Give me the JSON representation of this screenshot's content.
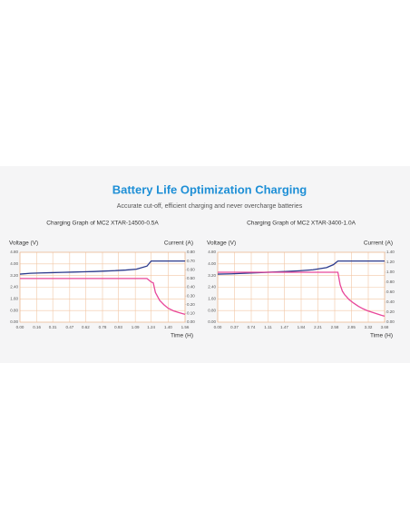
{
  "header": {
    "title": "Battery Life Optimization Charging",
    "subtitle": "Accurate cut-off, efficient charging and never overcharge batteries"
  },
  "chart_data": [
    {
      "type": "line",
      "title": "Charging Graph of MC2 XTAR-14500-0.5A",
      "ylabel": "Voltage (V)",
      "y2label": "Current (A)",
      "xlabel": "Time (H)",
      "grid": true,
      "x": [
        0,
        0.1,
        0.2,
        0.3,
        0.4,
        0.5,
        0.6,
        0.7,
        0.8,
        0.9,
        1.0,
        1.1,
        1.2,
        1.24,
        1.26,
        1.28,
        1.32,
        1.36,
        1.4,
        1.45,
        1.5,
        1.56
      ],
      "series": [
        {
          "name": "Voltage",
          "color": "#2b3a8c",
          "values": [
            3.3,
            3.36,
            3.38,
            3.4,
            3.42,
            3.44,
            3.46,
            3.48,
            3.51,
            3.54,
            3.58,
            3.64,
            3.85,
            4.2,
            4.2,
            4.2,
            4.2,
            4.2,
            4.2,
            4.2,
            4.2,
            4.2
          ]
        },
        {
          "name": "Current",
          "color": "#e8479a",
          "axis": "y2",
          "values": [
            0.5,
            0.5,
            0.5,
            0.5,
            0.5,
            0.5,
            0.5,
            0.5,
            0.5,
            0.5,
            0.5,
            0.5,
            0.5,
            0.46,
            0.45,
            0.34,
            0.25,
            0.2,
            0.16,
            0.13,
            0.11,
            0.09
          ]
        }
      ],
      "xlim": [
        0,
        1.56
      ],
      "xticks": [
        {
          "value": 0,
          "label": "0.00"
        },
        {
          "value": 0.16,
          "label": "0.16"
        },
        {
          "value": 0.31,
          "label": "0.31"
        },
        {
          "value": 0.47,
          "label": "0.47"
        },
        {
          "value": 0.62,
          "label": "0.62"
        },
        {
          "value": 0.78,
          "label": "0.78"
        },
        {
          "value": 0.93,
          "label": "0.93"
        },
        {
          "value": 1.09,
          "label": "1.09"
        },
        {
          "value": 1.24,
          "label": "1.24"
        },
        {
          "value": 1.4,
          "label": "1.40"
        },
        {
          "value": 1.56,
          "label": "1.56"
        }
      ],
      "ylim": [
        0,
        4.8
      ],
      "yticks": [
        {
          "value": 0,
          "label": "0.00"
        },
        {
          "value": 0.8,
          "label": "0.80"
        },
        {
          "value": 1.6,
          "label": "1.60"
        },
        {
          "value": 2.4,
          "label": "2.40"
        },
        {
          "value": 3.2,
          "label": "3.20"
        },
        {
          "value": 4,
          "label": "4.00"
        },
        {
          "value": 4.8,
          "label": "4.80"
        }
      ],
      "y2lim": [
        0,
        0.8
      ],
      "y2ticks": [
        {
          "value": 0,
          "label": "0.00"
        },
        {
          "value": 0.1,
          "label": "0.10"
        },
        {
          "value": 0.2,
          "label": "0.20"
        },
        {
          "value": 0.3,
          "label": "0.30"
        },
        {
          "value": 0.4,
          "label": "0.40"
        },
        {
          "value": 0.5,
          "label": "0.50"
        },
        {
          "value": 0.6,
          "label": "0.60"
        },
        {
          "value": 0.7,
          "label": "0.70"
        },
        {
          "value": 0.8,
          "label": "0.80"
        }
      ]
    },
    {
      "type": "line",
      "title": "Charging Graph of MC2 XTAR-3400-1.0A",
      "ylabel": "Voltage (V)",
      "y2label": "Current (A)",
      "xlabel": "Time (H)",
      "grid": true,
      "x": [
        0,
        0.3,
        0.6,
        0.9,
        1.2,
        1.5,
        1.8,
        2.1,
        2.4,
        2.55,
        2.65,
        2.7,
        2.75,
        2.8,
        2.9,
        3.0,
        3.1,
        3.2,
        3.3,
        3.4,
        3.5,
        3.6,
        3.68
      ],
      "series": [
        {
          "name": "Voltage",
          "color": "#2b3a8c",
          "values": [
            3.3,
            3.32,
            3.36,
            3.4,
            3.44,
            3.48,
            3.53,
            3.6,
            3.75,
            3.95,
            4.2,
            4.2,
            4.2,
            4.2,
            4.2,
            4.2,
            4.2,
            4.2,
            4.2,
            4.2,
            4.2,
            4.2,
            4.2
          ]
        },
        {
          "name": "Current",
          "color": "#e8479a",
          "axis": "y2",
          "values": [
            1.0,
            1.0,
            1.0,
            1.0,
            1.0,
            1.0,
            1.0,
            1.0,
            1.0,
            1.0,
            1.0,
            0.75,
            0.62,
            0.55,
            0.45,
            0.38,
            0.32,
            0.27,
            0.23,
            0.2,
            0.17,
            0.14,
            0.12
          ]
        }
      ],
      "xlim": [
        0,
        3.68
      ],
      "xticks": [
        {
          "value": 0,
          "label": "0.00"
        },
        {
          "value": 0.37,
          "label": "0.37"
        },
        {
          "value": 0.74,
          "label": "0.74"
        },
        {
          "value": 1.11,
          "label": "1.11"
        },
        {
          "value": 1.47,
          "label": "1.47"
        },
        {
          "value": 1.84,
          "label": "1.84"
        },
        {
          "value": 2.21,
          "label": "2.21"
        },
        {
          "value": 2.58,
          "label": "2.58"
        },
        {
          "value": 2.95,
          "label": "2.95"
        },
        {
          "value": 3.32,
          "label": "3.32"
        },
        {
          "value": 3.68,
          "label": "3.68"
        }
      ],
      "ylim": [
        0,
        4.8
      ],
      "yticks": [
        {
          "value": 0,
          "label": "0.00"
        },
        {
          "value": 0.8,
          "label": "0.80"
        },
        {
          "value": 1.6,
          "label": "1.60"
        },
        {
          "value": 2.4,
          "label": "2.40"
        },
        {
          "value": 3.2,
          "label": "3.20"
        },
        {
          "value": 4,
          "label": "4.00"
        },
        {
          "value": 4.8,
          "label": "4.80"
        }
      ],
      "y2lim": [
        0,
        1.4
      ],
      "y2ticks": [
        {
          "value": 0,
          "label": "0.00"
        },
        {
          "value": 0.2,
          "label": "0.20"
        },
        {
          "value": 0.4,
          "label": "0.40"
        },
        {
          "value": 0.6,
          "label": "0.60"
        },
        {
          "value": 0.8,
          "label": "0.80"
        },
        {
          "value": 1.0,
          "label": "1.00"
        },
        {
          "value": 1.2,
          "label": "1.20"
        },
        {
          "value": 1.4,
          "label": "1.40"
        }
      ]
    }
  ]
}
